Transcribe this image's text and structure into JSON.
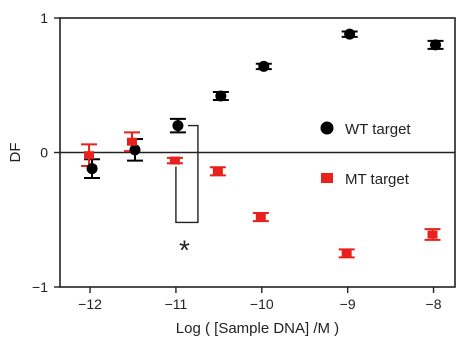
{
  "chart_data": {
    "type": "scatter",
    "xlabel": "Log ( [Sample DNA] /M )",
    "ylabel": "DF",
    "xlim": [
      -12.35,
      -7.75
    ],
    "ylim": [
      -1,
      1
    ],
    "x_ticks": [
      -12,
      -11,
      -10,
      -9,
      -8
    ],
    "y_ticks": [
      -1,
      0,
      1
    ],
    "x_tick_labels": [
      "−12",
      "−11",
      "−10",
      "−9",
      "−8"
    ],
    "y_tick_labels": [
      "−1",
      "0",
      "1"
    ],
    "legend_position": "right",
    "series": [
      {
        "name": "WT target",
        "marker": "circle",
        "color": "#000000",
        "x": [
          -12,
          -11.5,
          -11,
          -10.5,
          -10,
          -9,
          -8
        ],
        "y": [
          -0.12,
          0.02,
          0.2,
          0.42,
          0.64,
          0.88,
          0.8
        ],
        "error": [
          0.07,
          0.08,
          0.05,
          0.03,
          0.02,
          0.02,
          0.03
        ]
      },
      {
        "name": "MT target",
        "marker": "square",
        "color": "#e8211c",
        "x": [
          -12,
          -11.5,
          -11,
          -10.5,
          -10,
          -9,
          -8
        ],
        "y": [
          -0.02,
          0.08,
          -0.06,
          -0.14,
          -0.48,
          -0.75,
          -0.61
        ],
        "error": [
          0.08,
          0.07,
          0.02,
          0.03,
          0.03,
          0.03,
          0.04
        ]
      }
    ],
    "annotations": [
      {
        "text": "*",
        "x": -10.9,
        "y": -0.72
      }
    ]
  }
}
